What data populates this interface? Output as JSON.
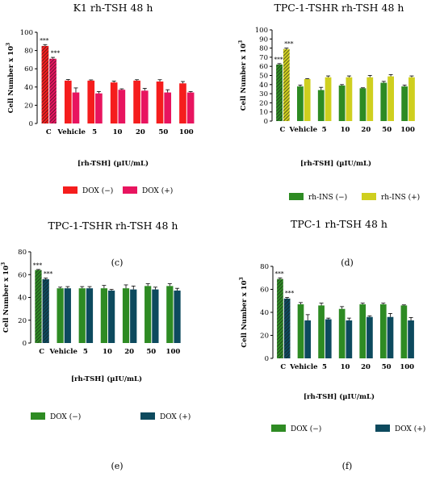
{
  "chart_data": [
    {
      "type": "bar",
      "panel": "",
      "title": "K1 rh-TSH 48 h",
      "ylabel": "Cell Number x 10",
      "ylabel_superscript": "3",
      "xlabel": "[rh-TSH] (µIU/mL)",
      "ylim": [
        0,
        100
      ],
      "yticks": [
        0,
        20,
        40,
        60,
        80,
        100
      ],
      "categories": [
        "C",
        "Vehicle",
        "5",
        "10",
        "20",
        "50",
        "100"
      ],
      "legend_position": "bottom",
      "series": [
        {
          "name": "DOX (−)",
          "color": "#f51d1d",
          "hatched": [
            true,
            false,
            false,
            false,
            false,
            false,
            false
          ],
          "values": [
            85,
            47,
            47,
            45,
            47,
            46,
            44
          ],
          "errors": [
            1.5,
            1.2,
            0.8,
            1.5,
            1,
            2,
            2
          ]
        },
        {
          "name": "DOX (+)",
          "color": "#e8145f",
          "hatched": [
            true,
            false,
            false,
            false,
            false,
            false,
            false
          ],
          "values": [
            71,
            34,
            33,
            37,
            36,
            34,
            34
          ],
          "errors": [
            1.5,
            5,
            2,
            1,
            2.5,
            3,
            1
          ]
        }
      ],
      "annotations": [
        {
          "category": "C",
          "series": 0,
          "text": "***"
        },
        {
          "category": "C",
          "series": 1,
          "text": "***"
        }
      ]
    },
    {
      "type": "bar",
      "panel": "",
      "title": "TPC-1-TSHR rh-TSH 48 h",
      "ylabel": "Cell Number x 10",
      "ylabel_superscript": "3",
      "xlabel": "[rh-TSH] (µIU/mL)",
      "ylim": [
        0,
        100
      ],
      "yticks": [
        0,
        10,
        20,
        30,
        40,
        50,
        60,
        70,
        80,
        90,
        100
      ],
      "categories": [
        "C",
        "Vehicle",
        "5",
        "10",
        "20",
        "50",
        "100"
      ],
      "legend_position": "bottom",
      "series": [
        {
          "name": "rh-INS (−)",
          "color": "#2e8b23",
          "hatched": [
            true,
            false,
            false,
            false,
            false,
            false,
            false
          ],
          "values": [
            62,
            38,
            34,
            39,
            36,
            42,
            38
          ],
          "errors": [
            1,
            1.5,
            3,
            1,
            0.5,
            1.5,
            1.5
          ]
        },
        {
          "name": "rh-INS (+)",
          "color": "#cfcf1f",
          "hatched": [
            true,
            false,
            false,
            false,
            false,
            false,
            false
          ],
          "values": [
            79,
            46,
            48,
            48,
            48,
            49,
            48
          ],
          "errors": [
            1,
            0.5,
            1.5,
            1.5,
            2,
            2,
            1.5
          ]
        }
      ],
      "annotations": [
        {
          "category": "C",
          "series": 0,
          "text": "***"
        },
        {
          "category": "C",
          "series": 1,
          "text": "***"
        }
      ]
    },
    {
      "type": "bar",
      "panel": "",
      "title": "TPC-1-TSHR rh-TSH 48 h",
      "ylabel": "Cell Number x 10",
      "ylabel_superscript": "3",
      "xlabel": "[rh-TSH] (µIU/mL)",
      "ylim": [
        0,
        80
      ],
      "yticks": [
        0,
        20,
        40,
        60,
        80
      ],
      "categories": [
        "C",
        "Vehicle",
        "5",
        "10",
        "20",
        "50",
        "100"
      ],
      "legend_position": "bottom",
      "series": [
        {
          "name": "DOX (−)",
          "color": "#2e8b23",
          "hatched": [
            true,
            false,
            false,
            false,
            false,
            false,
            false
          ],
          "values": [
            64,
            48,
            48,
            48,
            48,
            50,
            50
          ],
          "errors": [
            0.5,
            1,
            1.5,
            2.5,
            3,
            2,
            2
          ]
        },
        {
          "name": "DOX (+)",
          "color": "#0d4a5e",
          "hatched": [
            true,
            false,
            false,
            false,
            false,
            false,
            false
          ],
          "values": [
            56,
            48,
            48,
            46,
            47,
            47,
            46
          ],
          "errors": [
            1,
            1.5,
            1.5,
            1,
            3,
            2,
            2
          ]
        }
      ],
      "annotations": [
        {
          "category": "C",
          "series": 0,
          "text": "***"
        },
        {
          "category": "C",
          "series": 1,
          "text": "***"
        }
      ]
    },
    {
      "type": "bar",
      "panel": "",
      "title": "TPC-1 rh-TSH 48 h",
      "ylabel": "Cell Number x 10",
      "ylabel_superscript": "3",
      "xlabel": "[rh-TSH] (µIU/mL)",
      "ylim": [
        0,
        80
      ],
      "yticks": [
        0,
        20,
        40,
        60,
        80
      ],
      "categories": [
        "C",
        "Vehicle",
        "5",
        "10",
        "20",
        "50",
        "100"
      ],
      "legend_position": "bottom",
      "series": [
        {
          "name": "DOX (−)",
          "color": "#2e8b23",
          "hatched": [
            true,
            false,
            false,
            false,
            false,
            false,
            false
          ],
          "values": [
            69,
            47,
            46,
            43,
            47,
            47,
            46
          ],
          "errors": [
            1,
            1.5,
            2,
            2,
            1,
            1,
            0.5
          ]
        },
        {
          "name": "DOX (+)",
          "color": "#0d4a5e",
          "hatched": [
            true,
            false,
            false,
            false,
            false,
            false,
            false
          ],
          "values": [
            52,
            33,
            34,
            33,
            36,
            36,
            33
          ],
          "errors": [
            1,
            5,
            1,
            2,
            1,
            3,
            2.5
          ]
        }
      ],
      "annotations": [
        {
          "category": "C",
          "series": 0,
          "text": "***"
        },
        {
          "category": "C",
          "series": 1,
          "text": "***"
        }
      ]
    }
  ],
  "panel_labels": [
    "(c)",
    "(d)",
    "(e)",
    "(f)"
  ]
}
